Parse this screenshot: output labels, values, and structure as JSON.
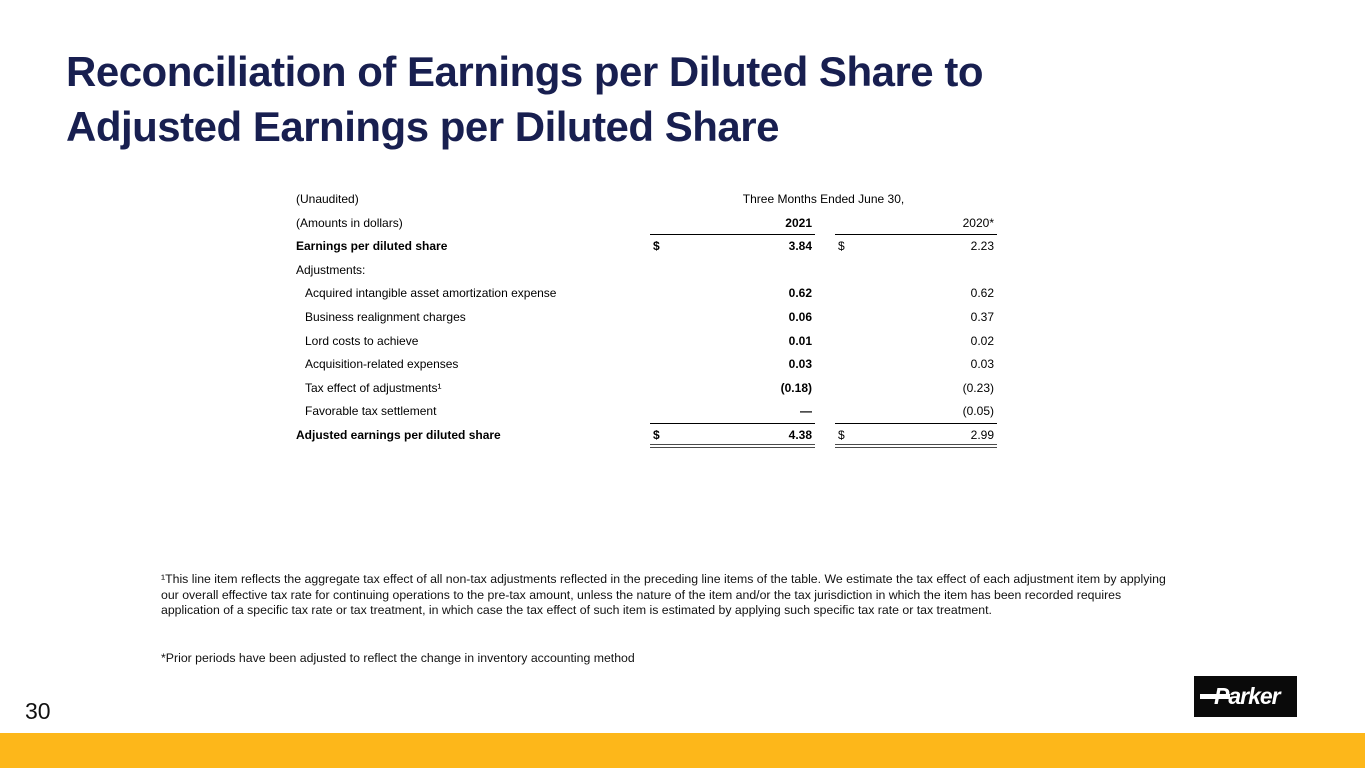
{
  "slide": {
    "title_line1": "Reconciliation of Earnings per Diluted Share to",
    "title_line2": "Adjusted Earnings per Diluted Share",
    "page_number": "30",
    "accent_color": "#FDB71A",
    "title_color": "#181F50",
    "logo_text": "Parker"
  },
  "table": {
    "header": {
      "unaudited": "(Unaudited)",
      "period": "Three Months Ended June 30,",
      "amounts": "(Amounts in dollars)",
      "col_2021": "2021",
      "col_2020": "2020*"
    },
    "rows": [
      {
        "label": "Earnings per diluted share",
        "bold_label": true,
        "indent": false,
        "dollar": true,
        "v2021": "3.84",
        "v2020": "2.23",
        "rule": "none"
      },
      {
        "label": "Adjustments:",
        "bold_label": false,
        "indent": false,
        "dollar": false,
        "v2021": "",
        "v2020": "",
        "rule": "none"
      },
      {
        "label": "Acquired intangible asset amortization expense",
        "bold_label": false,
        "indent": true,
        "dollar": false,
        "v2021": "0.62",
        "v2020": "0.62",
        "rule": "none"
      },
      {
        "label": "Business realignment charges",
        "bold_label": false,
        "indent": true,
        "dollar": false,
        "v2021": "0.06",
        "v2020": "0.37",
        "rule": "none"
      },
      {
        "label": "Lord costs to achieve",
        "bold_label": false,
        "indent": true,
        "dollar": false,
        "v2021": "0.01",
        "v2020": "0.02",
        "rule": "none"
      },
      {
        "label": "Acquisition-related expenses",
        "bold_label": false,
        "indent": true,
        "dollar": false,
        "v2021": "0.03",
        "v2020": "0.03",
        "rule": "none"
      },
      {
        "label": "Tax effect of adjustments¹",
        "bold_label": false,
        "indent": true,
        "dollar": false,
        "v2021": "(0.18)",
        "v2020": "(0.23)",
        "rule": "none"
      },
      {
        "label": "Favorable tax settlement",
        "bold_label": false,
        "indent": true,
        "dollar": false,
        "v2021": "—",
        "v2020": "(0.05)",
        "rule": "single"
      },
      {
        "label": "Adjusted earnings per diluted share",
        "bold_label": true,
        "indent": false,
        "dollar": true,
        "v2021": "4.38",
        "v2020": "2.99",
        "rule": "double"
      }
    ]
  },
  "footnotes": {
    "tax_note": "¹This line item reflects the aggregate tax effect of all non-tax adjustments reflected in the preceding line items of the table. We estimate the tax effect of each adjustment item by applying our overall effective tax rate for continuing operations to the pre-tax amount, unless the nature of the item and/or the tax jurisdiction in which the item has been recorded requires application of a specific tax rate or tax treatment, in which case the tax effect of such item is estimated by applying such specific tax rate or tax treatment.",
    "prior_note": "*Prior periods have been adjusted to reflect the change in inventory accounting method"
  }
}
